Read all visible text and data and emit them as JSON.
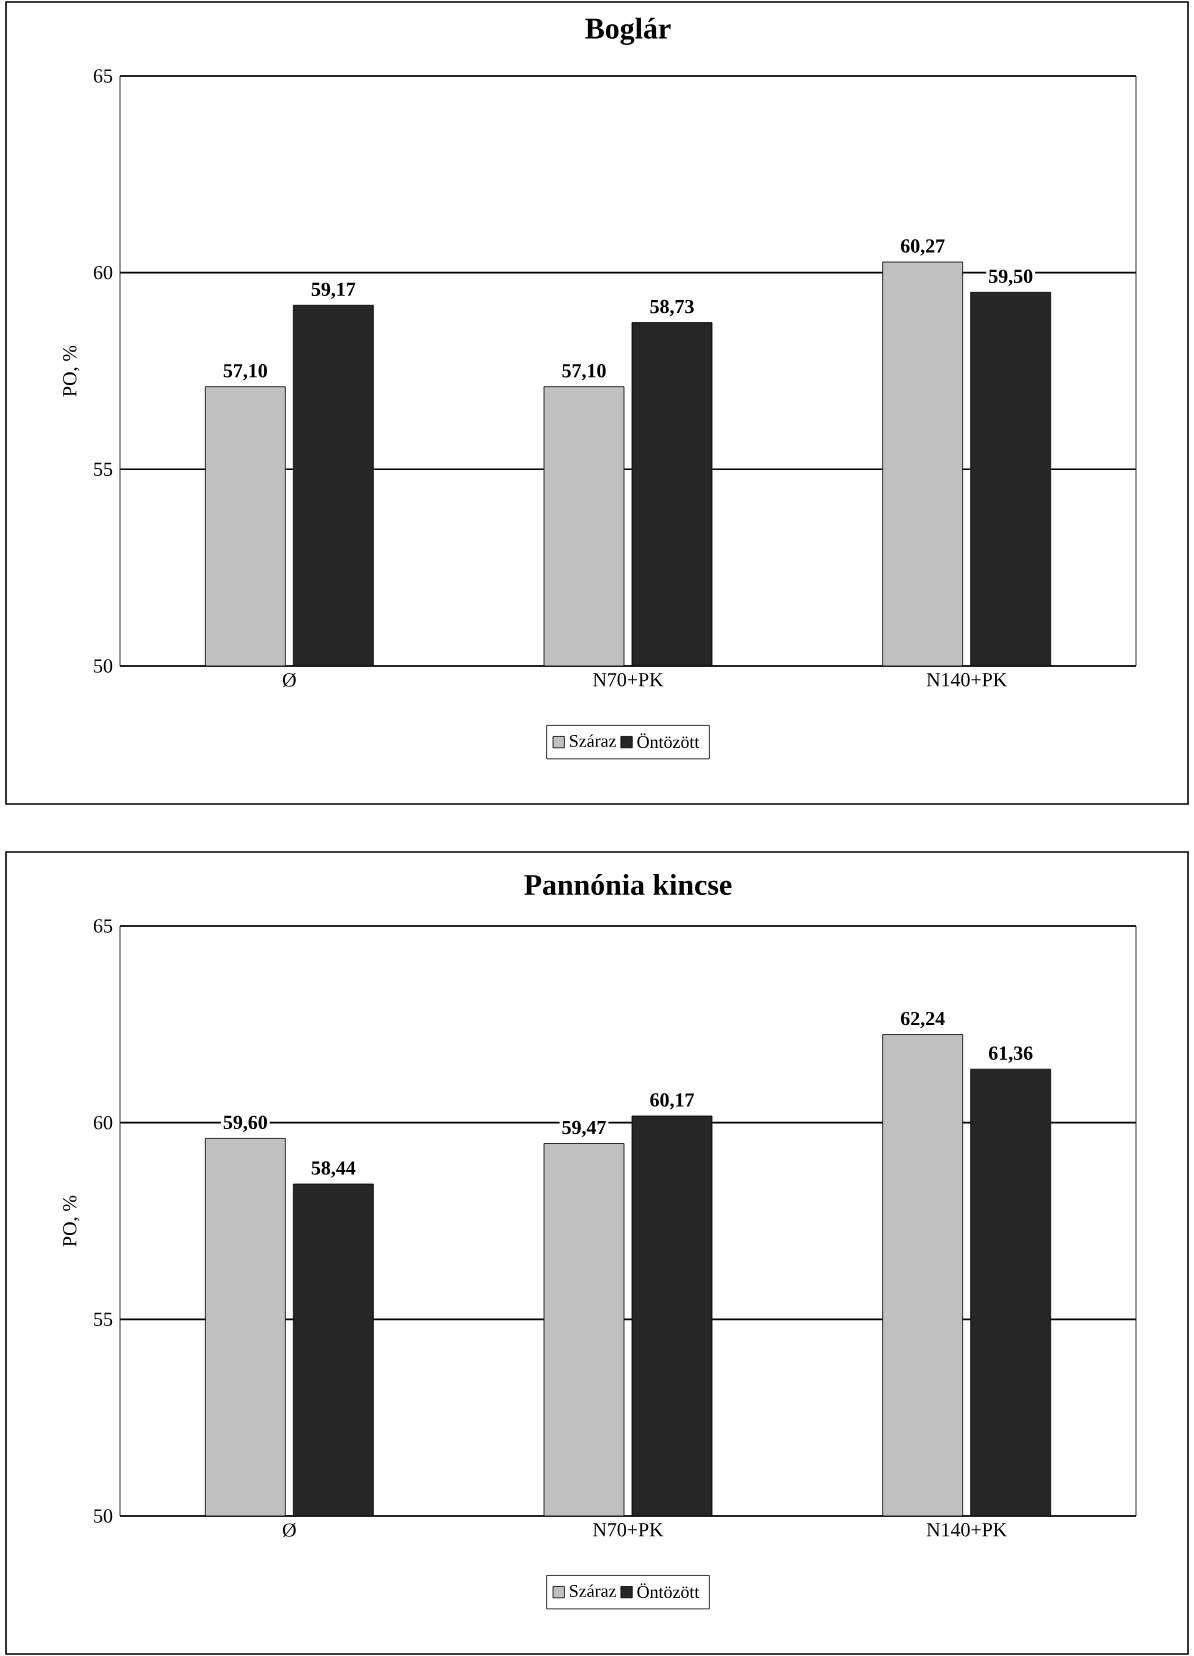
{
  "chart_data": [
    {
      "type": "bar",
      "title": "Boglár",
      "ylabel": "PO, %",
      "categories": [
        "Ø",
        "N70+PK",
        "N140+PK"
      ],
      "series": [
        {
          "name": "Száraz",
          "color": "#c0c0c0",
          "values": [
            57.1,
            57.1,
            60.27
          ],
          "value_labels": [
            "57,10",
            "57,10",
            "60,27"
          ]
        },
        {
          "name": "Öntözött",
          "color": "#262626",
          "values": [
            59.17,
            58.73,
            59.5
          ],
          "value_labels": [
            "59,17",
            "58,73",
            "59,50"
          ]
        }
      ],
      "ylim": [
        50,
        65
      ],
      "yticks": [
        50,
        55,
        60,
        65
      ],
      "grid": "y",
      "legend": "bottom"
    },
    {
      "type": "bar",
      "title": "Pannónia kincse",
      "ylabel": "PO, %",
      "categories": [
        "Ø",
        "N70+PK",
        "N140+PK"
      ],
      "series": [
        {
          "name": "Száraz",
          "color": "#c0c0c0",
          "values": [
            59.6,
            59.47,
            62.24
          ],
          "value_labels": [
            "59,60",
            "59,47",
            "62,24"
          ]
        },
        {
          "name": "Öntözött",
          "color": "#262626",
          "values": [
            58.44,
            60.17,
            61.36
          ],
          "value_labels": [
            "58,44",
            "60,17",
            "61,36"
          ]
        }
      ],
      "ylim": [
        50,
        65
      ],
      "yticks": [
        50,
        55,
        60,
        65
      ],
      "grid": "y",
      "legend": "bottom"
    }
  ]
}
